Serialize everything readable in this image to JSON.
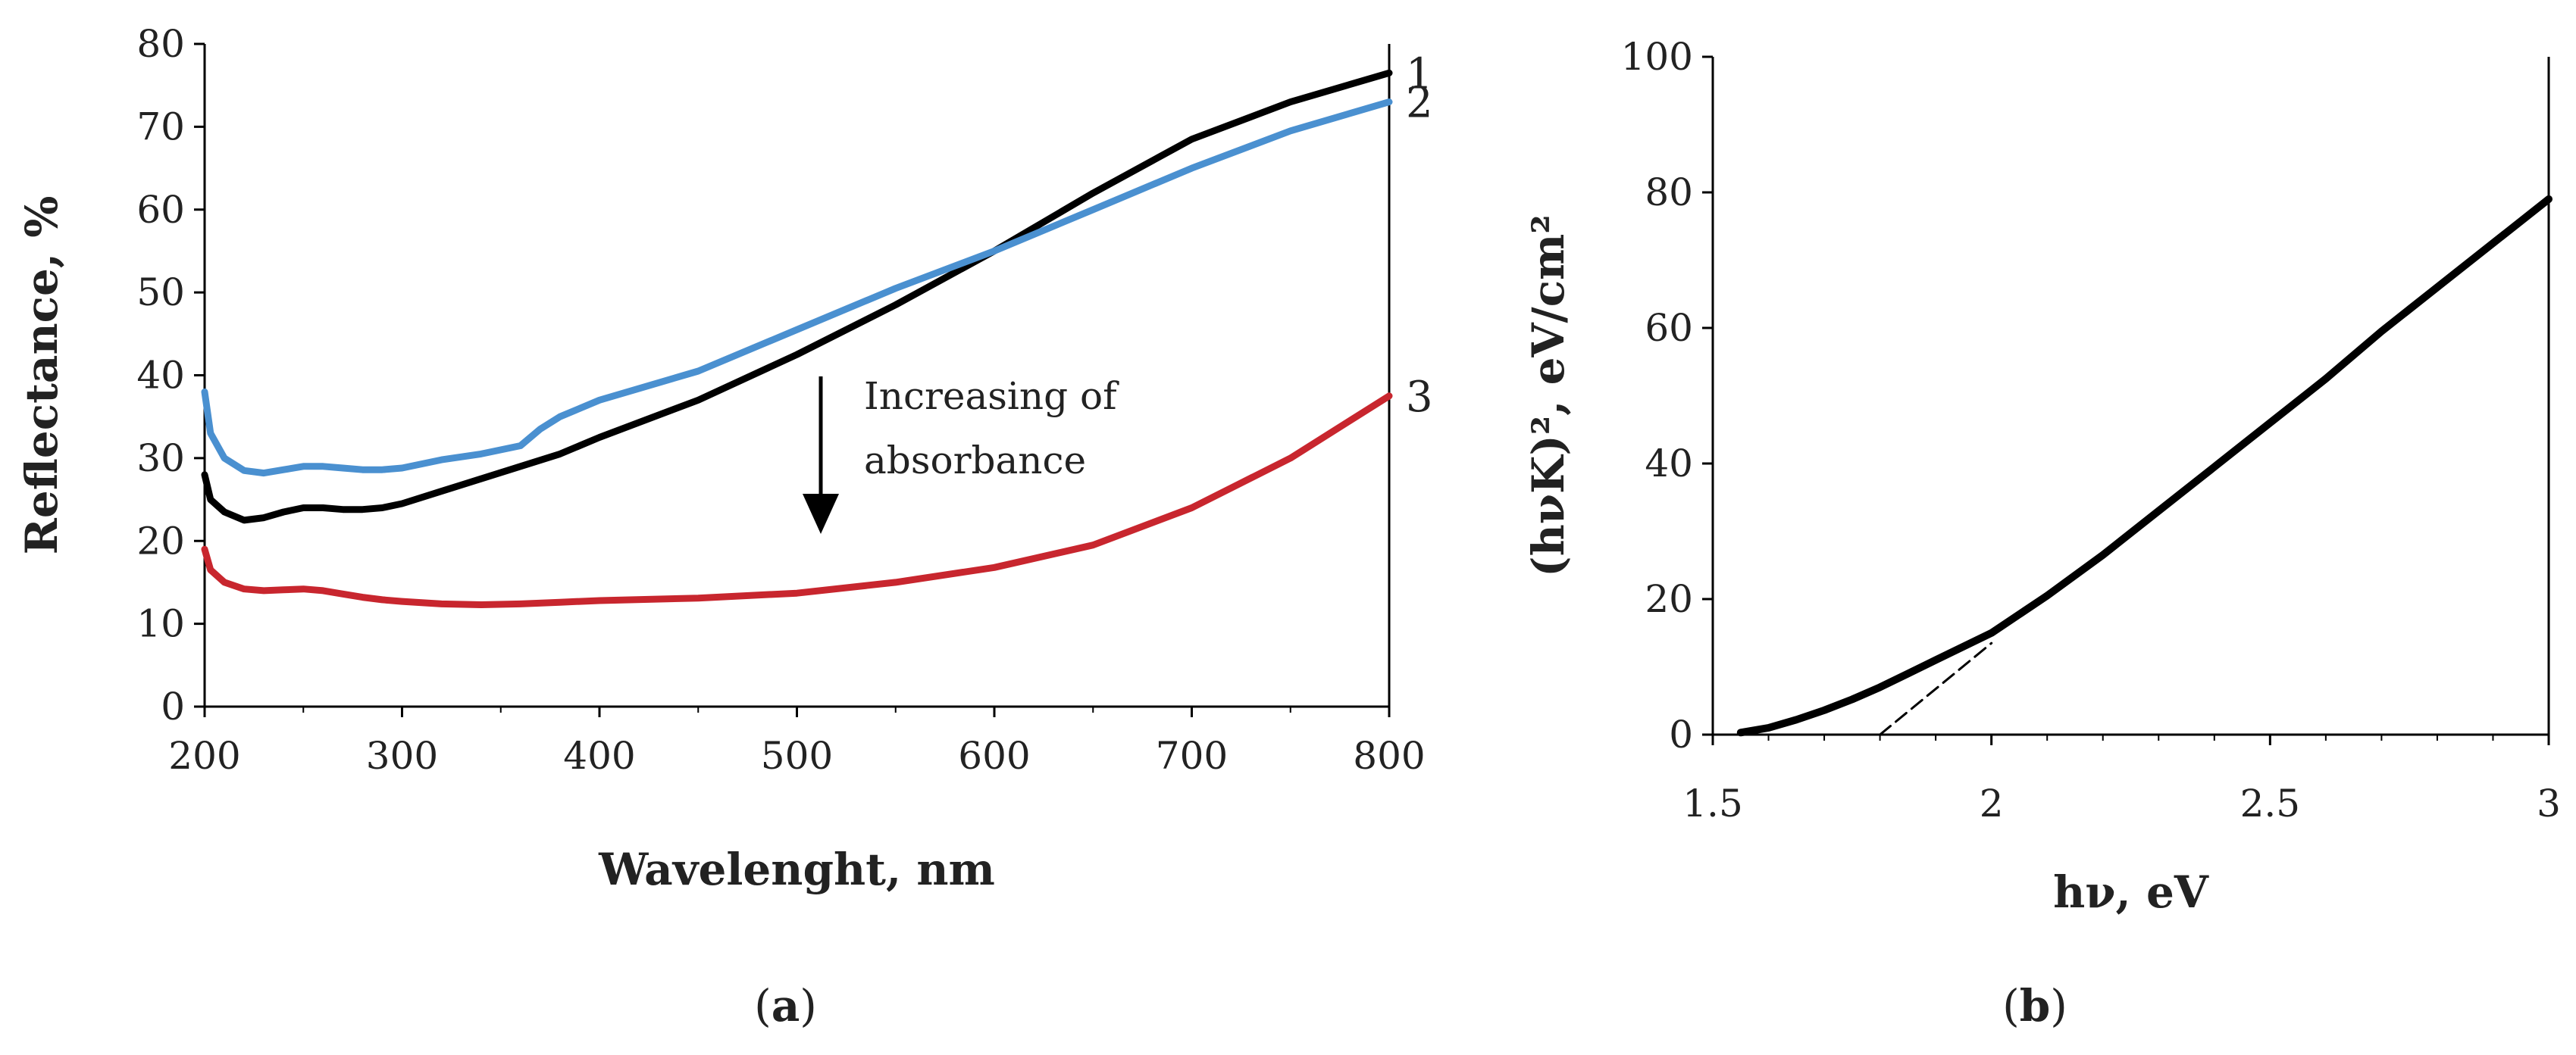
{
  "chart_data": [
    {
      "panel": "a",
      "type": "line",
      "panel_label_open": "(",
      "panel_label_letter": "a",
      "panel_label_close": ")",
      "xlabel": "Wavelenght, nm",
      "ylabel": "Reflectance, %",
      "xlim": [
        200,
        800
      ],
      "ylim": [
        0,
        80
      ],
      "xticks": [
        200,
        300,
        400,
        500,
        600,
        700,
        800
      ],
      "yticks": [
        0,
        10,
        20,
        30,
        40,
        50,
        60,
        70,
        80
      ],
      "annotation_line1": "Increasing of",
      "annotation_line2": "absorbance",
      "series": [
        {
          "name": "1",
          "color": "#000000",
          "x": [
            200,
            203,
            210,
            220,
            230,
            240,
            250,
            260,
            270,
            280,
            290,
            300,
            320,
            340,
            360,
            380,
            400,
            450,
            500,
            550,
            600,
            650,
            700,
            750,
            800
          ],
          "y": [
            28,
            25,
            23.5,
            22.5,
            22.8,
            23.5,
            24,
            24,
            23.8,
            23.8,
            24,
            24.5,
            26,
            27.5,
            29,
            30.5,
            32.5,
            37,
            42.5,
            48.5,
            55,
            62,
            68.5,
            73,
            76.5
          ]
        },
        {
          "name": "2",
          "color": "#4a90d0",
          "x": [
            200,
            203,
            210,
            220,
            230,
            240,
            250,
            260,
            270,
            280,
            290,
            300,
            320,
            340,
            360,
            370,
            380,
            400,
            450,
            500,
            550,
            600,
            650,
            700,
            750,
            800
          ],
          "y": [
            38,
            33,
            30,
            28.5,
            28.2,
            28.6,
            29,
            29,
            28.8,
            28.6,
            28.6,
            28.8,
            29.8,
            30.5,
            31.5,
            33.5,
            35,
            37,
            40.5,
            45.5,
            50.5,
            55,
            60,
            65,
            69.5,
            73
          ]
        },
        {
          "name": "3",
          "color": "#c8262e",
          "x": [
            200,
            203,
            210,
            220,
            230,
            240,
            250,
            260,
            270,
            280,
            290,
            300,
            320,
            340,
            360,
            380,
            400,
            450,
            500,
            550,
            600,
            650,
            700,
            750,
            800
          ],
          "y": [
            19,
            16.5,
            15,
            14.2,
            14,
            14.1,
            14.2,
            14,
            13.6,
            13.2,
            12.9,
            12.7,
            12.4,
            12.3,
            12.4,
            12.6,
            12.8,
            13.1,
            13.7,
            15,
            16.8,
            19.5,
            24,
            30,
            37.5
          ]
        }
      ]
    },
    {
      "panel": "b",
      "type": "line",
      "panel_label_open": "(",
      "panel_label_letter": "b",
      "panel_label_close": ")",
      "xlabel": "hν, eV",
      "ylabel": "(hνK)², eV/cm²",
      "xlim": [
        1.5,
        3
      ],
      "ylim": [
        0,
        100
      ],
      "xticks": [
        "1.5",
        "2",
        "2.5",
        "3"
      ],
      "xtick_values": [
        1.5,
        2,
        2.5,
        3
      ],
      "yticks": [
        0,
        20,
        40,
        60,
        80,
        100
      ],
      "series": [
        {
          "name": "(hνK)²",
          "color": "#000000",
          "x": [
            1.55,
            1.6,
            1.65,
            1.7,
            1.75,
            1.8,
            1.85,
            1.9,
            1.95,
            2.0,
            2.1,
            2.2,
            2.3,
            2.4,
            2.5,
            2.6,
            2.7,
            2.8,
            2.9,
            3.0
          ],
          "y": [
            0.3,
            1.0,
            2.2,
            3.6,
            5.2,
            7.0,
            9.0,
            11.0,
            13.0,
            15.0,
            20.5,
            26.5,
            33,
            39.5,
            46,
            52.5,
            59.5,
            66,
            72.5,
            79
          ]
        },
        {
          "name": "tangent",
          "color": "#000000",
          "style": "dashed",
          "x": [
            1.8,
            2.0
          ],
          "y": [
            0,
            13.5
          ]
        }
      ]
    }
  ]
}
